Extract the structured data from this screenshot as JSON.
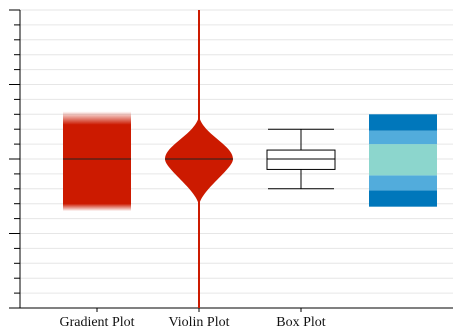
{
  "chart_data": {
    "type": "box",
    "title": "",
    "xlabel": "",
    "ylabel": "",
    "ylim": [
      0,
      20
    ],
    "grid": true,
    "y_tick_labels_shown": false,
    "categories": [
      "Gradient Plot",
      "Violin Plot",
      "Box Plot",
      ""
    ],
    "gradient_plot": {
      "median": 10,
      "solid_range": [
        7.0,
        12.3
      ],
      "fade_range": [
        6.5,
        13.2
      ],
      "color": "#cc1a00"
    },
    "violin_plot": {
      "median": 10,
      "range": [
        0,
        20
      ],
      "body_range": [
        6.9,
        12.9
      ],
      "peak": 10.0,
      "color": "#cc1a00"
    },
    "box_plot": {
      "whisker_low": 8.0,
      "q1": 9.3,
      "median": 10.0,
      "q3": 10.6,
      "whisker_high": 12.0
    },
    "fourth_plot": {
      "bands": [
        {
          "from": 6.8,
          "to": 7.9,
          "color": "#0077bb"
        },
        {
          "from": 7.9,
          "to": 8.9,
          "color": "#52acdc"
        },
        {
          "from": 8.9,
          "to": 11.0,
          "color": "#8cd6cd"
        },
        {
          "from": 11.0,
          "to": 11.9,
          "color": "#52acdc"
        },
        {
          "from": 11.9,
          "to": 13.0,
          "color": "#0077bb"
        }
      ]
    }
  }
}
